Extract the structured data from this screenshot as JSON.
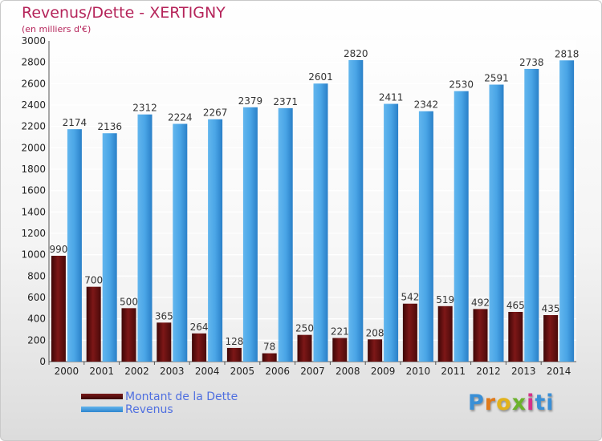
{
  "title": "Revenus/Dette - XERTIGNY",
  "subtitle": "(en milliers d'€)",
  "logo": [
    "P",
    "r",
    "o",
    "x",
    "i",
    "ti"
  ],
  "colors": {
    "dette": "#6a1010",
    "revenus": "#3b9be0",
    "title": "#b5245a",
    "legend_text": "#4f6fe0"
  },
  "legend": [
    {
      "label": "Montant de la Dette"
    },
    {
      "label": "Revenus"
    }
  ],
  "chart_data": {
    "type": "bar",
    "title": "Revenus/Dette - XERTIGNY",
    "subtitle": "(en milliers d'€)",
    "categories": [
      "2000",
      "2001",
      "2002",
      "2003",
      "2004",
      "2005",
      "2006",
      "2007",
      "2008",
      "2009",
      "2010",
      "2011",
      "2012",
      "2013",
      "2014"
    ],
    "series": [
      {
        "name": "Montant de la Dette",
        "values": [
          990,
          700,
          500,
          365,
          264,
          128,
          78,
          250,
          221,
          208,
          542,
          519,
          492,
          465,
          435
        ]
      },
      {
        "name": "Revenus",
        "values": [
          2174,
          2136,
          2312,
          2224,
          2267,
          2379,
          2371,
          2601,
          2820,
          2411,
          2342,
          2530,
          2591,
          2738,
          2818
        ]
      }
    ],
    "ylim": [
      0,
      3000
    ],
    "yticks": [
      0,
      200,
      400,
      600,
      800,
      1000,
      1200,
      1400,
      1600,
      1800,
      2000,
      2200,
      2400,
      2600,
      2800,
      3000
    ],
    "grid": true,
    "legend_position": "bottom-left"
  }
}
